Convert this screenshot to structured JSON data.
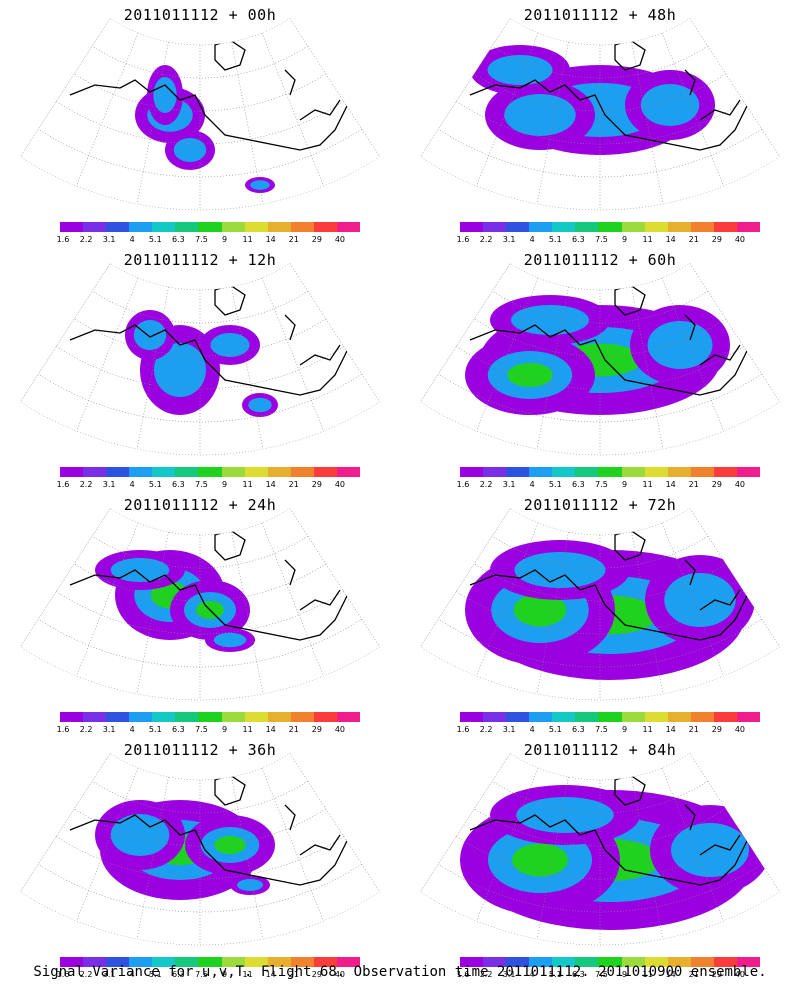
{
  "chart_data": [
    {
      "type": "heatmap",
      "title": "2011011112 + 00h",
      "lead_hours": 0
    },
    {
      "type": "heatmap",
      "title": "2011011112 + 48h",
      "lead_hours": 48
    },
    {
      "type": "heatmap",
      "title": "2011011112 + 12h",
      "lead_hours": 12
    },
    {
      "type": "heatmap",
      "title": "2011011112 + 60h",
      "lead_hours": 60
    },
    {
      "type": "heatmap",
      "title": "2011011112 + 24h",
      "lead_hours": 24
    },
    {
      "type": "heatmap",
      "title": "2011011112 + 72h",
      "lead_hours": 72
    },
    {
      "type": "heatmap",
      "title": "2011011112 + 36h",
      "lead_hours": 36
    },
    {
      "type": "heatmap",
      "title": "2011011112 + 84h",
      "lead_hours": 84
    }
  ],
  "colorbar": {
    "labels": [
      "1.6",
      "2.2",
      "3.1",
      "4",
      "5.1",
      "6.3",
      "7.5",
      "9",
      "11",
      "14",
      "21",
      "29",
      "40"
    ],
    "colors": [
      "#9b00e0",
      "#7a2ee8",
      "#2f52e0",
      "#1c9ff0",
      "#14c8c8",
      "#15c87d",
      "#1fd21f",
      "#9bdc3c",
      "#dcdc32",
      "#e6af2d",
      "#f0822d",
      "#fa3c3c",
      "#f01e8c"
    ]
  },
  "map_style": {
    "land": "#ffffff",
    "coast": "#000000",
    "grid": "#888888"
  },
  "footer": "Signal Variance for u,v,T. Flight 68. Observation time 2011011112. 2011010900 ensemble."
}
